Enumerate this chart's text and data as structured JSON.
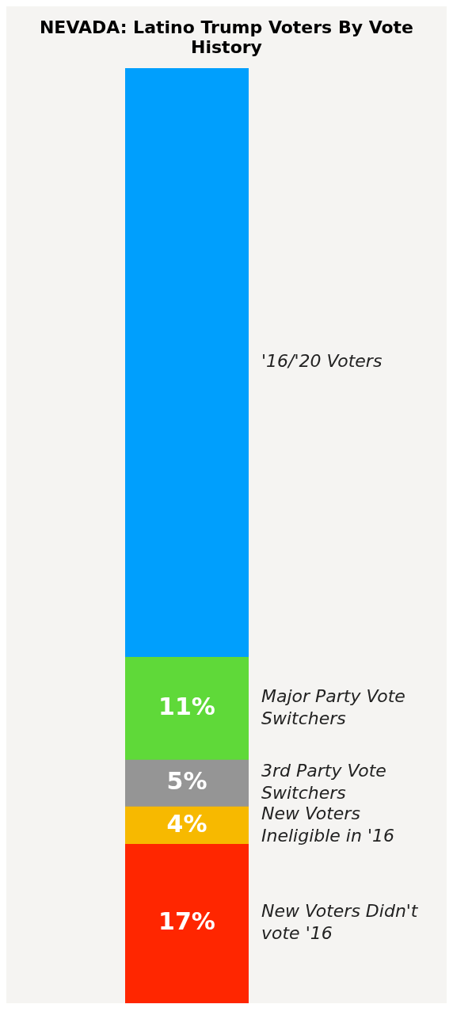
{
  "chart_data": {
    "type": "bar",
    "title": "NEVADA: Latino Trump Voters By Vote History",
    "categories": [
      null
    ],
    "stacked": true,
    "legend": false,
    "series": [
      {
        "name": "New Voters Didn't vote '16",
        "color": "#ff2600",
        "values": [
          17
        ],
        "value_labels": [
          "17%"
        ]
      },
      {
        "name": "New Voters Ineligible in '16",
        "color": "#f7b900",
        "values": [
          4
        ],
        "value_labels": [
          "4%"
        ]
      },
      {
        "name": "3rd Party Vote Switchers",
        "color": "#959595",
        "values": [
          5
        ],
        "value_labels": [
          "5%"
        ]
      },
      {
        "name": "Major Party Vote Switchers",
        "color": "#5fd939",
        "values": [
          11
        ],
        "value_labels": [
          "11%"
        ]
      },
      {
        "name": "'16/'20 Voters",
        "color": "#009ffd",
        "values": [
          63
        ],
        "value_labels": [
          null
        ]
      }
    ]
  }
}
